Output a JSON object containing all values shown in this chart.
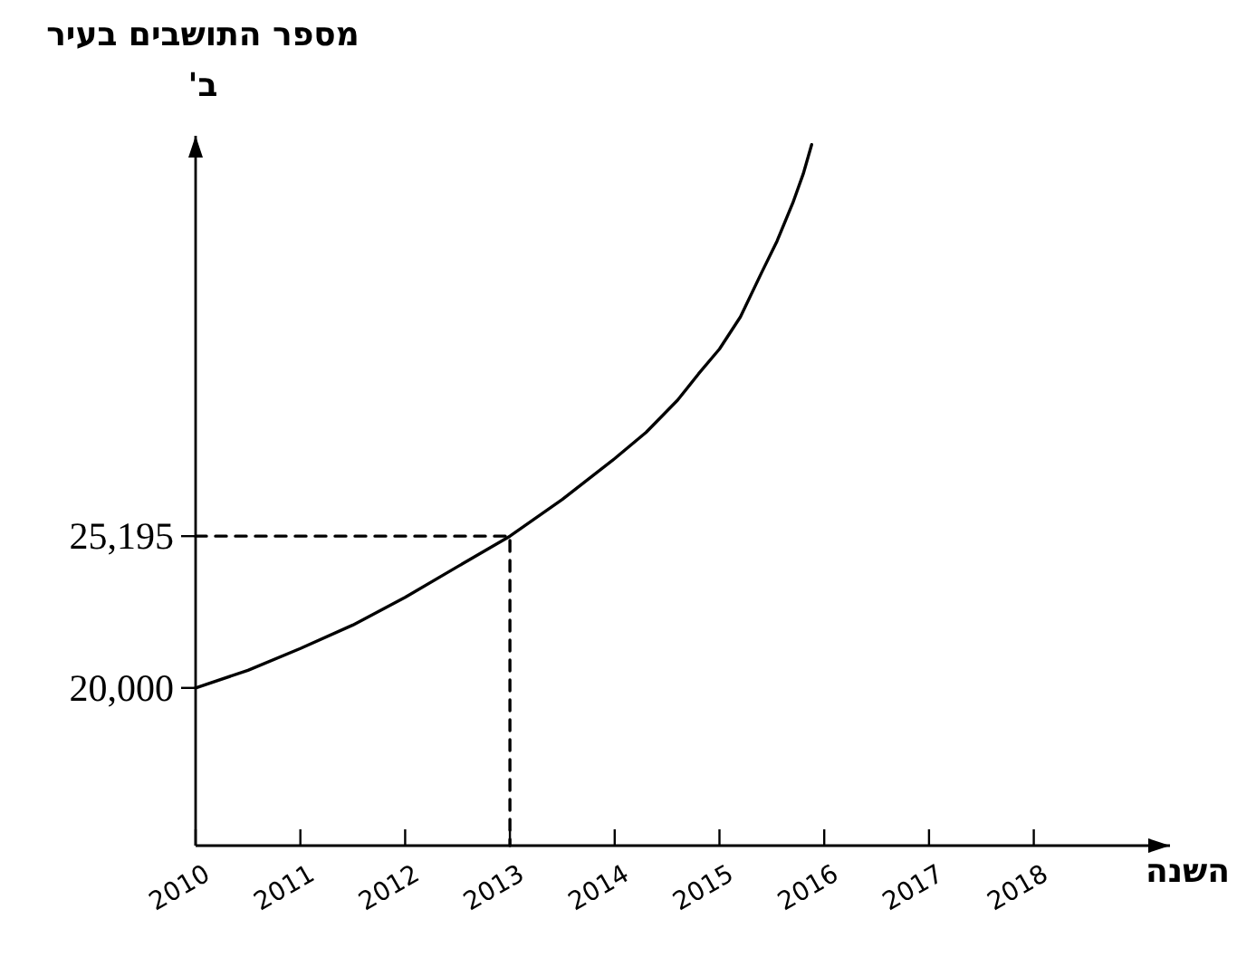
{
  "chart_data": {
    "type": "line",
    "ylabel": "מספר התושבים בעיר ב'",
    "xlabel": "השנה",
    "xlim": [
      2010,
      2019.3
    ],
    "ylim": [
      14600,
      38900
    ],
    "xticks": [
      2010,
      2011,
      2012,
      2013,
      2014,
      2015,
      2016,
      2017,
      2018
    ],
    "yticks": [
      {
        "value": 20000,
        "label": "20,000"
      },
      {
        "value": 25195,
        "label": "25,195"
      }
    ],
    "marker": "none",
    "series": [
      {
        "color": "#000000",
        "line_style": "solid",
        "x": [
          2010,
          2010.5,
          2011,
          2011.5,
          2012,
          2012.5,
          2013,
          2013.5,
          2014,
          2014.3,
          2014.6,
          2014.8,
          2015,
          2015.2,
          2015.4,
          2015.55,
          2015.7,
          2015.8,
          2015.88
        ],
        "values": [
          20000,
          20600,
          21350,
          22150,
          23100,
          24150,
          25195,
          26450,
          27850,
          28750,
          29850,
          30750,
          31600,
          32700,
          34200,
          35300,
          36600,
          37600,
          38600
        ]
      },
      {
        "color": "#000000",
        "line_style": "dashed",
        "x": [
          2010,
          2013,
          2013
        ],
        "values": [
          25195,
          25195,
          14600
        ]
      }
    ]
  }
}
